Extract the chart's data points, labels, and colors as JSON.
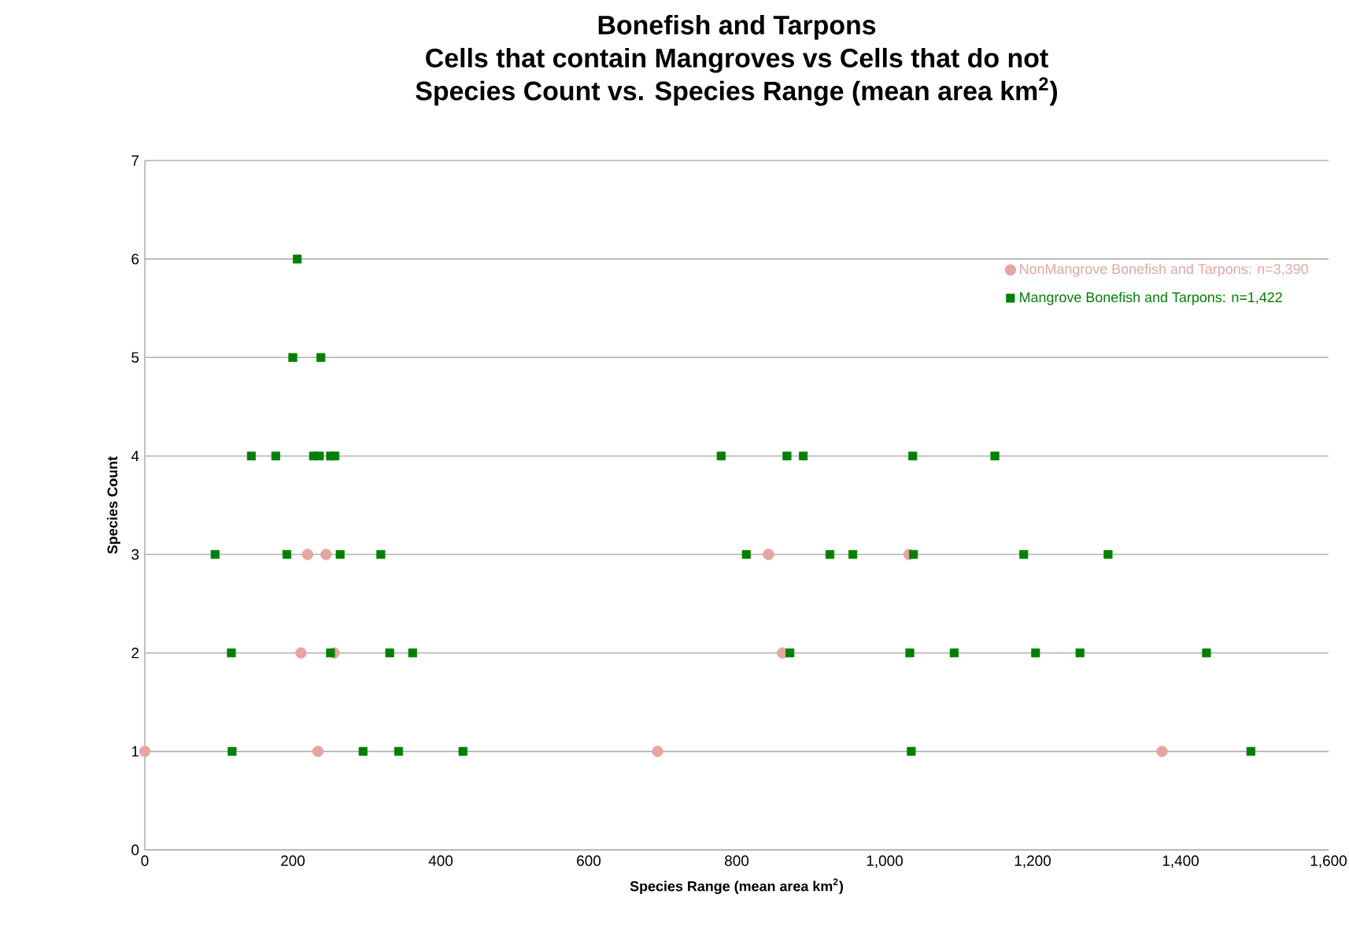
{
  "chart_data": {
    "type": "scatter",
    "title": "Bonefish and Tarpons",
    "subtitle": "Cells that contain Mangroves vs Cells that do not",
    "annotations": [
      "Species Count vs. Species Range (mean area km$^{2}$)"
    ],
    "xlabel": "Species Range (mean area km$^{2}$)",
    "ylabel": "Species Count",
    "xlim": [
      0,
      1600
    ],
    "xticks": [
      0,
      200,
      400,
      600,
      800,
      {
        "value": 1000,
        "label": "1,000"
      },
      {
        "value": 1200,
        "label": "1,200"
      },
      {
        "value": 1400,
        "label": "1,400"
      },
      {
        "value": 1600,
        "label": "1,600"
      }
    ],
    "ylim": [
      0,
      7
    ],
    "yticks": [
      0,
      1,
      2,
      3,
      4,
      5,
      6,
      7
    ],
    "grid": "y",
    "legend": "top right",
    "series": [
      {
        "name": "NonMangrove Bonefish and Tarpons: n=3,390",
        "color": "#e5a5a0",
        "marker": "circle",
        "x": [
          0,
          234,
          693,
          1375,
          211,
          256,
          862,
          220,
          245,
          843,
          1033
        ],
        "values": [
          1,
          1,
          1,
          1,
          2,
          2,
          2,
          3,
          3,
          3,
          3
        ]
      },
      {
        "name": "Mangrove Bonefish and Tarpons: n=1,422",
        "color": "#008000",
        "marker": "square",
        "x": [
          118,
          295,
          343,
          430,
          1036,
          1495,
          117,
          251,
          331,
          362,
          872,
          1034,
          1094,
          1204,
          1264,
          1435,
          95,
          192,
          264,
          319,
          813,
          926,
          957,
          1039,
          1188,
          1302,
          144,
          177,
          228,
          236,
          251,
          257,
          779,
          868,
          890,
          1038,
          1149,
          200,
          238,
          206
        ],
        "values": [
          1,
          1,
          1,
          1,
          1,
          1,
          2,
          2,
          2,
          2,
          2,
          2,
          2,
          2,
          2,
          2,
          3,
          3,
          3,
          3,
          3,
          3,
          3,
          3,
          3,
          3,
          4,
          4,
          4,
          4,
          4,
          4,
          4,
          4,
          4,
          4,
          4,
          5,
          5,
          6
        ]
      }
    ]
  }
}
